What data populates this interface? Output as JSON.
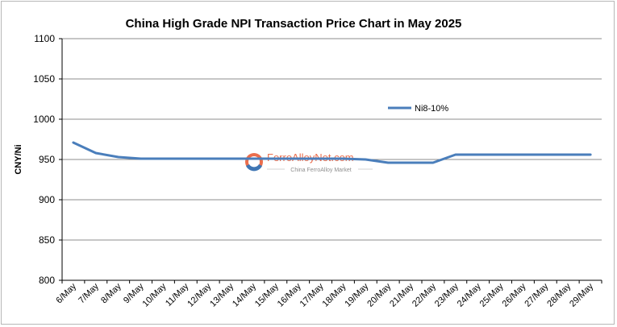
{
  "chart_data": {
    "type": "line",
    "title": "China High Grade NPI Transaction Price Chart in May 2025",
    "xlabel": "",
    "ylabel": "CNY/Ni",
    "ylim": [
      800,
      1100
    ],
    "yticks": [
      800,
      850,
      900,
      950,
      1000,
      1050,
      1100
    ],
    "grid": true,
    "legend_position": "right",
    "categories": [
      "6/May",
      "7/May",
      "8/May",
      "9/May",
      "10/May",
      "11/May",
      "12/May",
      "13/May",
      "14/May",
      "15/May",
      "16/May",
      "17/May",
      "18/May",
      "19/May",
      "20/May",
      "21/May",
      "22/May",
      "23/May",
      "24/May",
      "25/May",
      "26/May",
      "27/May",
      "28/May",
      "29/May"
    ],
    "series": [
      {
        "name": "Ni8-10%",
        "color": "#4a7ebb",
        "values": [
          971,
          958,
          953,
          951,
          951,
          951,
          951,
          951,
          951,
          951,
          951,
          951,
          951,
          950,
          946,
          946,
          946,
          956,
          956,
          956,
          956,
          956,
          956,
          956
        ]
      }
    ]
  },
  "watermark": {
    "brand": "FerroAlloyNet.com",
    "tagline": "China FerroAlloy Market"
  }
}
